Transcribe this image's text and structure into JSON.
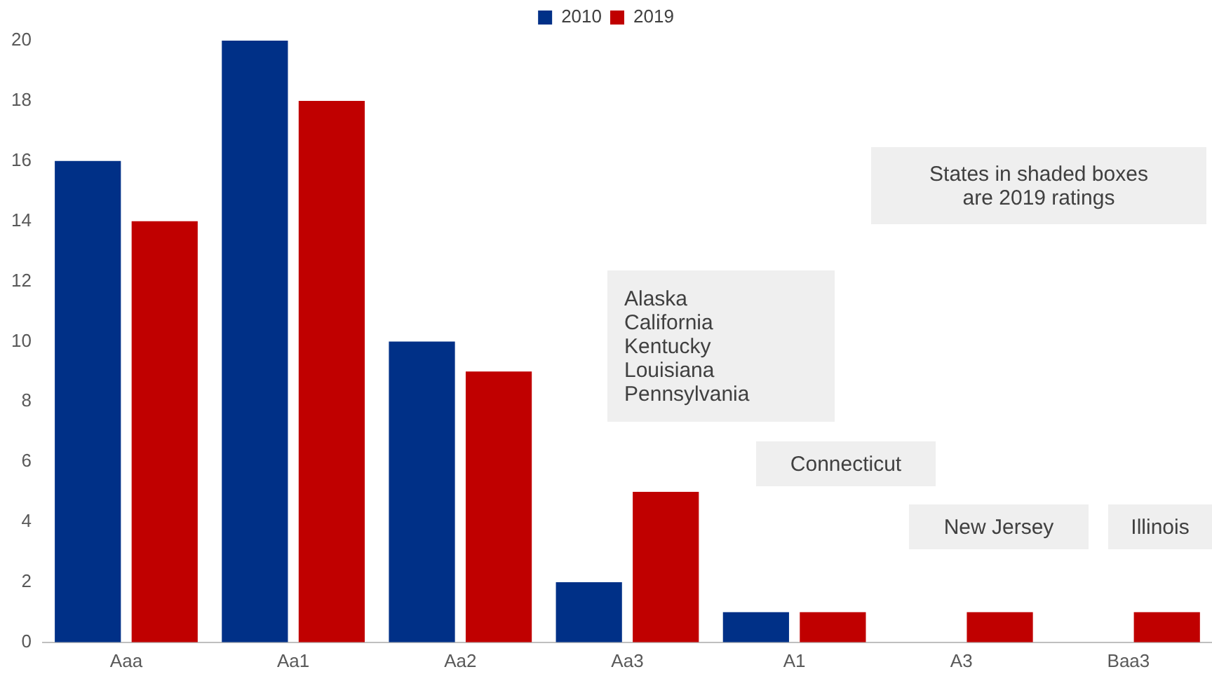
{
  "chart_data": {
    "type": "bar",
    "categories": [
      "Aaa",
      "Aa1",
      "Aa2",
      "Aa3",
      "A1",
      "A3",
      "Baa3"
    ],
    "series": [
      {
        "name": "2010",
        "color": "#003087",
        "values": [
          16,
          20,
          10,
          2,
          1,
          0,
          0
        ]
      },
      {
        "name": "2019",
        "color": "#c00000",
        "values": [
          14,
          18,
          9,
          5,
          1,
          1,
          1
        ]
      }
    ],
    "ylim": [
      0,
      20
    ],
    "yticks": [
      0,
      2,
      4,
      6,
      8,
      10,
      12,
      14,
      16,
      18,
      20
    ],
    "grid": false,
    "legend": "top",
    "annotations": [
      "States in shaded boxes are 2019 ratings",
      "Alaska\nCalifornia\nKentucky\nLouisiana\nPennsylvania",
      "Connecticut",
      "New Jersey",
      "Illinois"
    ]
  }
}
